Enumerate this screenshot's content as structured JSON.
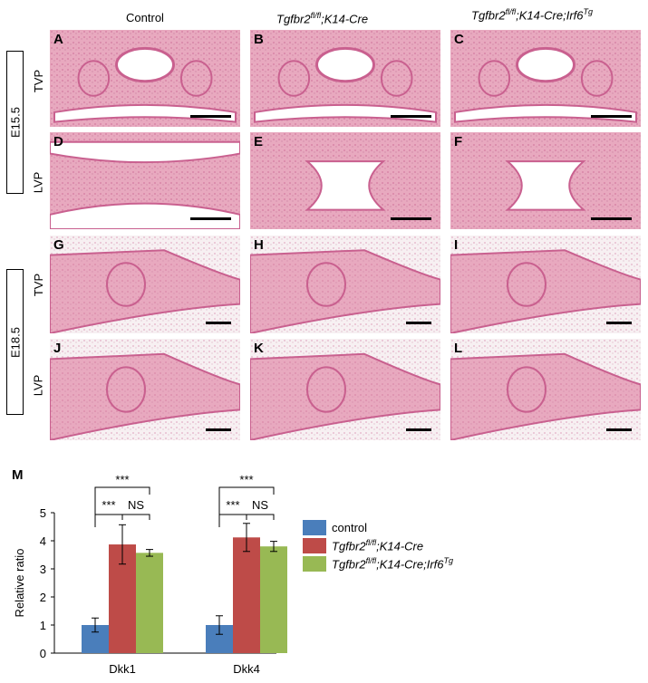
{
  "columns": [
    {
      "plain": "Control"
    },
    {
      "base": "Tgfbr2",
      "sup": "fl/fl",
      "rest": ";K14-Cre"
    },
    {
      "base": "Tgfbr2",
      "sup": "fl/fl",
      "rest": ";K14-Cre;Irf6",
      "sup2": "Tg"
    }
  ],
  "stages": [
    "E15.5",
    "E18.5"
  ],
  "row_labels": [
    "TVP",
    "LVP",
    "TVP",
    "LVP"
  ],
  "panels": [
    "A",
    "B",
    "C",
    "D",
    "E",
    "F",
    "G",
    "H",
    "I",
    "J",
    "K",
    "L"
  ],
  "panel_m_label": "M",
  "colors": {
    "control": "#4a7ebb",
    "k14": "#be4b48",
    "irf6": "#98b954",
    "tissue": "#e8a9bf",
    "tissue_dark": "#c9608f"
  },
  "chart_data": {
    "type": "bar",
    "categories": [
      "Dkk1",
      "Dkk4"
    ],
    "ylabel": "Relative ratio",
    "ylim": [
      0,
      5
    ],
    "yticks": [
      0,
      1,
      2,
      3,
      4,
      5
    ],
    "series": [
      {
        "name": "control",
        "values": [
          1.0,
          1.0
        ],
        "err": [
          0.25,
          0.33
        ]
      },
      {
        "name": "Tgfbr2fl/fl;K14-Cre",
        "values": [
          3.87,
          4.12
        ],
        "err": [
          0.7,
          0.5
        ]
      },
      {
        "name": "Tgfbr2fl/fl;K14-Cre;Irf6Tg",
        "values": [
          3.57,
          3.8
        ],
        "err": [
          0.12,
          0.18
        ]
      }
    ],
    "significance": [
      "***",
      "***",
      "NS"
    ]
  }
}
